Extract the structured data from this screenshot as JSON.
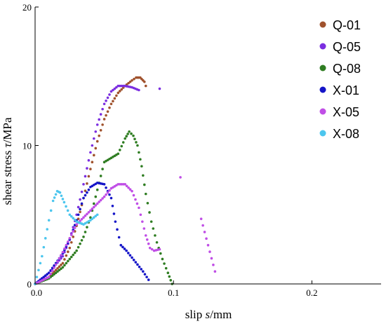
{
  "chart_data": {
    "type": "scatter",
    "xlabel": "slip s/mm",
    "xlabel_parts": [
      "slip ",
      "s",
      "/mm"
    ],
    "ylabel": "shear stress τ/MPa",
    "ylabel_parts": [
      "shear stress ",
      "τ",
      "/MPa"
    ],
    "xlim": [
      0,
      0.25
    ],
    "ylim": [
      0,
      20
    ],
    "xticks": [
      0.0,
      0.1,
      0.2
    ],
    "xtick_labels": [
      "0.0",
      "0.1",
      "0.2"
    ],
    "yticks": [
      0,
      10,
      20
    ],
    "ytick_labels": [
      "0",
      "10",
      "20"
    ],
    "grid": false,
    "legend_position": "top-right",
    "series": [
      {
        "name": "Q-01",
        "color": "#a0522d",
        "x": [
          0.0,
          0.01,
          0.02,
          0.025,
          0.03,
          0.035,
          0.04,
          0.045,
          0.05,
          0.055,
          0.06,
          0.065,
          0.07,
          0.073,
          0.076,
          0.079,
          0.08
        ],
        "y": [
          0.0,
          0.5,
          1.5,
          2.6,
          4.2,
          6.2,
          8.3,
          10.3,
          11.9,
          13.0,
          13.8,
          14.3,
          14.7,
          14.9,
          14.9,
          14.6,
          14.3
        ]
      },
      {
        "name": "Q-05",
        "color": "#7b2ee0",
        "x": [
          0.0,
          0.01,
          0.02,
          0.025,
          0.03,
          0.035,
          0.04,
          0.045,
          0.05,
          0.055,
          0.06,
          0.065,
          0.07,
          0.075,
          0.09
        ],
        "y": [
          0.0,
          0.8,
          2.0,
          3.2,
          5.0,
          7.2,
          9.5,
          11.5,
          13.0,
          13.9,
          14.3,
          14.3,
          14.2,
          14.0,
          14.1
        ]
      },
      {
        "name": "Q-08",
        "color": "#2f7d22",
        "x": [
          0.0,
          0.01,
          0.02,
          0.03,
          0.035,
          0.04,
          0.045,
          0.05,
          0.055,
          0.06,
          0.065,
          0.068,
          0.071,
          0.074,
          0.077,
          0.08,
          0.084,
          0.088,
          0.092,
          0.096,
          0.099
        ],
        "y": [
          0.0,
          0.4,
          1.2,
          2.4,
          3.4,
          4.8,
          6.8,
          8.8,
          9.1,
          9.4,
          10.5,
          11.0,
          10.7,
          10.0,
          8.5,
          6.5,
          4.5,
          3.0,
          1.8,
          0.8,
          0.0
        ]
      },
      {
        "name": "X-01",
        "color": "#1515c8",
        "x": [
          0.0,
          0.01,
          0.02,
          0.025,
          0.03,
          0.035,
          0.04,
          0.045,
          0.05,
          0.055,
          0.058,
          0.062,
          0.066,
          0.07,
          0.074,
          0.078,
          0.082
        ],
        "y": [
          0.0,
          0.8,
          2.2,
          3.2,
          4.6,
          6.2,
          7.0,
          7.3,
          7.2,
          6.2,
          4.5,
          2.8,
          2.4,
          1.9,
          1.4,
          0.9,
          0.3
        ]
      },
      {
        "name": "X-05",
        "color": "#c04ee6",
        "x": [
          0.0,
          0.01,
          0.02,
          0.025,
          0.03,
          0.04,
          0.05,
          0.055,
          0.06,
          0.065,
          0.07,
          0.075,
          0.08,
          0.083,
          0.086,
          0.09,
          0.105,
          0.12,
          0.13
        ],
        "y": [
          0.0,
          0.5,
          2.3,
          3.3,
          4.3,
          5.3,
          6.3,
          6.9,
          7.2,
          7.2,
          6.7,
          5.5,
          3.5,
          2.6,
          2.4,
          2.5,
          7.7,
          4.7,
          0.9
        ]
      },
      {
        "name": "X-08",
        "color": "#4cc6ee",
        "x": [
          0.0,
          0.005,
          0.01,
          0.013,
          0.016,
          0.018,
          0.021,
          0.025,
          0.03,
          0.035,
          0.04,
          0.045
        ],
        "y": [
          0.0,
          2.0,
          4.6,
          6.0,
          6.7,
          6.6,
          5.9,
          5.0,
          4.5,
          4.3,
          4.6,
          5.0
        ]
      }
    ]
  }
}
